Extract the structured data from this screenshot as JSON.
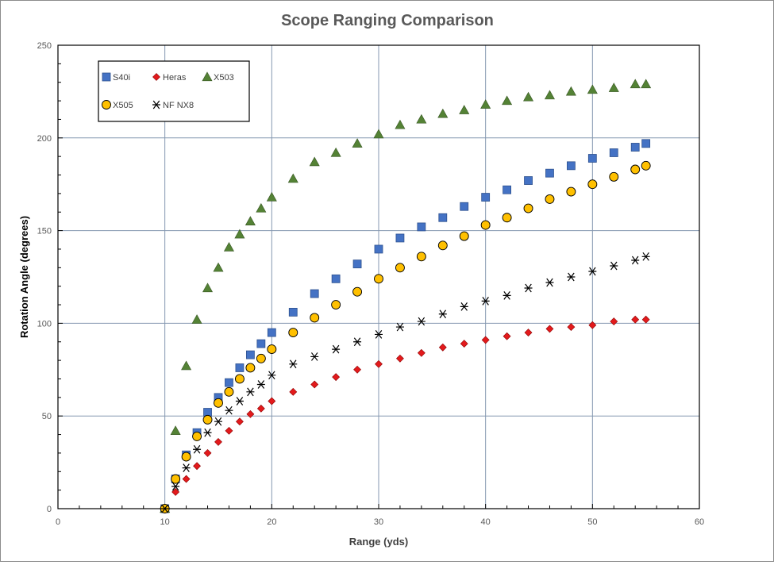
{
  "chart_data": {
    "type": "scatter",
    "title": "Scope Ranging Comparison",
    "xlabel": "Range (yds)",
    "ylabel": "Rotation Angle (degrees)",
    "xlim": [
      0,
      60
    ],
    "ylim": [
      0,
      250
    ],
    "xticks": [
      0,
      10,
      20,
      30,
      40,
      50,
      60
    ],
    "yticks": [
      0,
      50,
      100,
      150,
      200,
      250
    ],
    "grid": true,
    "legend_position": "top-left",
    "series": [
      {
        "name": "S40i",
        "marker": "square",
        "color": "#4472c4",
        "x": [
          10,
          11,
          12,
          13,
          14,
          15,
          16,
          17,
          18,
          19,
          20,
          22,
          24,
          26,
          28,
          30,
          32,
          34,
          36,
          38,
          40,
          42,
          44,
          46,
          48,
          50,
          52,
          54,
          55
        ],
        "y": [
          0,
          16,
          29,
          41,
          52,
          60,
          68,
          76,
          83,
          89,
          95,
          106,
          116,
          124,
          132,
          140,
          146,
          152,
          157,
          163,
          168,
          172,
          177,
          181,
          185,
          189,
          192,
          195,
          197
        ]
      },
      {
        "name": "Heras",
        "marker": "diamond",
        "color": "#e31a1c",
        "x": [
          10,
          11,
          12,
          13,
          14,
          15,
          16,
          17,
          18,
          19,
          20,
          22,
          24,
          26,
          28,
          30,
          32,
          34,
          36,
          38,
          40,
          42,
          44,
          46,
          48,
          50,
          52,
          54,
          55
        ],
        "y": [
          0,
          9,
          16,
          23,
          30,
          36,
          42,
          47,
          51,
          54,
          58,
          63,
          67,
          71,
          75,
          78,
          81,
          84,
          87,
          89,
          91,
          93,
          95,
          97,
          98,
          99,
          101,
          102,
          102
        ]
      },
      {
        "name": "X503",
        "marker": "triangle",
        "color": "#548235",
        "x": [
          10,
          11,
          12,
          13,
          14,
          15,
          16,
          17,
          18,
          19,
          20,
          22,
          24,
          26,
          28,
          30,
          32,
          34,
          36,
          38,
          40,
          42,
          44,
          46,
          48,
          50,
          52,
          54,
          55
        ],
        "y": [
          0,
          42,
          77,
          102,
          119,
          130,
          141,
          148,
          155,
          162,
          168,
          178,
          187,
          192,
          197,
          202,
          207,
          210,
          213,
          215,
          218,
          220,
          222,
          223,
          225,
          226,
          227,
          229,
          229
        ]
      },
      {
        "name": "X505",
        "marker": "circle",
        "color": "#ffc000",
        "x": [
          10,
          11,
          12,
          13,
          14,
          15,
          16,
          17,
          18,
          19,
          20,
          22,
          24,
          26,
          28,
          30,
          32,
          34,
          36,
          38,
          40,
          42,
          44,
          46,
          48,
          50,
          52,
          54,
          55
        ],
        "y": [
          0,
          16,
          28,
          39,
          48,
          57,
          63,
          70,
          76,
          81,
          86,
          95,
          103,
          110,
          117,
          124,
          130,
          136,
          142,
          147,
          153,
          157,
          162,
          167,
          171,
          175,
          179,
          183,
          185
        ]
      },
      {
        "name": "NF NX8",
        "marker": "star",
        "color": "#000000",
        "x": [
          10,
          11,
          12,
          13,
          14,
          15,
          16,
          17,
          18,
          19,
          20,
          22,
          24,
          26,
          28,
          30,
          32,
          34,
          36,
          38,
          40,
          42,
          44,
          46,
          48,
          50,
          52,
          54,
          55
        ],
        "y": [
          0,
          12,
          22,
          32,
          41,
          47,
          53,
          58,
          63,
          67,
          72,
          78,
          82,
          86,
          90,
          94,
          98,
          101,
          105,
          109,
          112,
          115,
          119,
          122,
          125,
          128,
          131,
          134,
          136
        ]
      }
    ]
  }
}
